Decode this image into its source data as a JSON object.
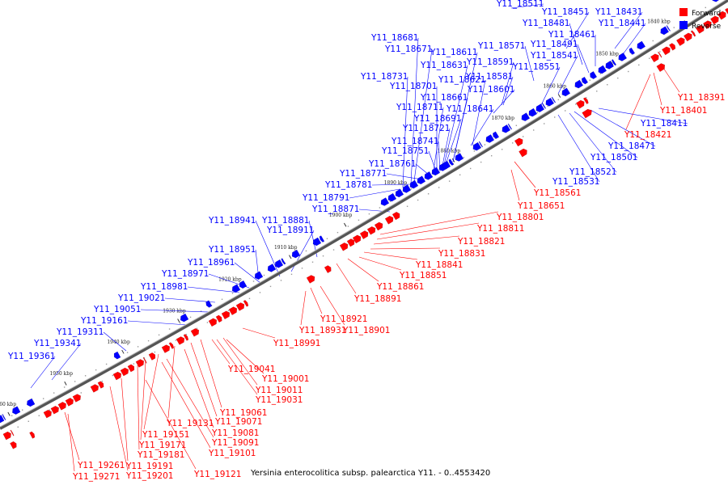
{
  "caption": "Yersinia enterocolitica subsp. palearctica Y11. - 0..4553420",
  "legend": {
    "forward": "Forward",
    "reverse": "Reverse"
  },
  "colors": {
    "forward": "#ff0000",
    "reverse": "#0000ff",
    "backbone": "#555555"
  },
  "kbp_ticks": [
    "1840 kbp",
    "1850 kbp",
    "1860 kbp",
    "1870 kbp",
    "1880 kbp",
    "1890 kbp",
    "1900 kbp",
    "1910 kbp",
    "1920 kbp",
    "1930 kbp",
    "1940 kbp",
    "1950 kbp",
    "1960 kbp"
  ],
  "reverse_labels": [
    "Y11_18511",
    "Y11_18451",
    "Y11_18431",
    "Y11_18481",
    "Y11_18441",
    "Y11_18461",
    "Y11_18681",
    "Y11_18491",
    "Y11_18671",
    "Y11_18611",
    "Y11_18571",
    "Y11_18541",
    "Y11_18631",
    "Y11_18591",
    "Y11_18551",
    "Y11_18731",
    "Y11_18621",
    "Y11_18581",
    "Y11_18701",
    "Y11_18601",
    "Y11_18661",
    "Y11_18711",
    "Y11_18641",
    "Y11_18691",
    "Y11_18721",
    "Y11_18741",
    "Y11_18751",
    "Y11_18761",
    "Y11_18771",
    "Y11_18781",
    "Y11_18791",
    "Y11_18871",
    "Y11_18941",
    "Y11_18881",
    "Y11_18911",
    "Y11_18951",
    "Y11_18961",
    "Y11_18971",
    "Y11_18981",
    "Y11_19021",
    "Y11_19051",
    "Y11_19161",
    "Y11_19311",
    "Y11_19341",
    "Y11_19361",
    "Y11_18411",
    "Y11_18471",
    "Y11_18501",
    "Y11_18521",
    "Y11_18531"
  ],
  "forward_labels": [
    "Y11_18391",
    "Y11_18401",
    "Y11_18421",
    "Y11_18561",
    "Y11_18651",
    "Y11_18801",
    "Y11_18811",
    "Y11_18821",
    "Y11_18831",
    "Y11_18841",
    "Y11_18851",
    "Y11_18861",
    "Y11_18891",
    "Y11_18921",
    "Y11_18931",
    "Y11_18901",
    "Y11_18991",
    "Y11_19041",
    "Y11_19001",
    "Y11_19011",
    "Y11_19031",
    "Y11_19061",
    "Y11_19071",
    "Y11_19131",
    "Y11_19081",
    "Y11_19151",
    "Y11_19091",
    "Y11_19171",
    "Y11_19101",
    "Y11_19181",
    "Y11_19191",
    "Y11_19261",
    "Y11_19201",
    "Y11_19271",
    "Y11_19121"
  ]
}
